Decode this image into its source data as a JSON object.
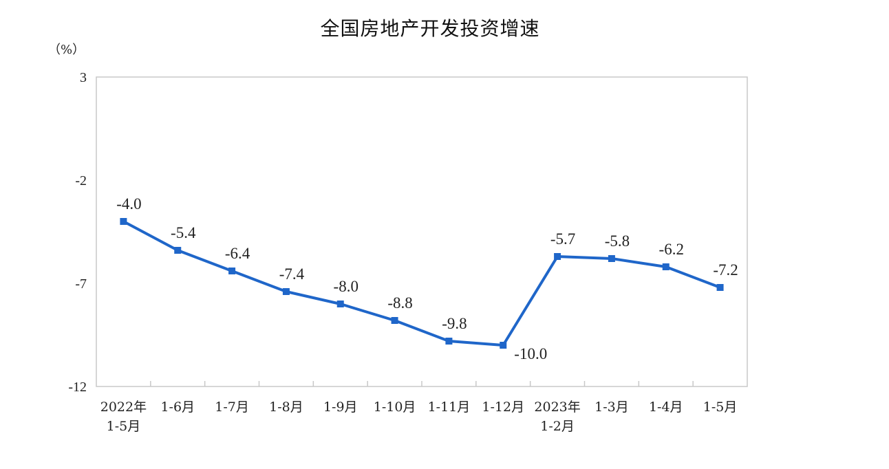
{
  "chart_data": {
    "type": "line",
    "title": "全国房地产开发投资增速",
    "unit": "（%）",
    "categories": [
      [
        "2022年",
        "1-5月"
      ],
      [
        "1-6月"
      ],
      [
        "1-7月"
      ],
      [
        "1-8月"
      ],
      [
        "1-9月"
      ],
      [
        "1-10月"
      ],
      [
        "1-11月"
      ],
      [
        "1-12月"
      ],
      [
        "2023年",
        "1-2月"
      ],
      [
        "1-3月"
      ],
      [
        "1-4月"
      ],
      [
        "1-5月"
      ]
    ],
    "series": [
      {
        "values": [
          -4.0,
          -5.4,
          -6.4,
          -7.4,
          -8.0,
          -8.8,
          -9.8,
          -10.0,
          -5.7,
          -5.8,
          -6.2,
          -7.2
        ],
        "labels": [
          "-4.0",
          "-5.4",
          "-6.4",
          "-7.4",
          "-8.0",
          "-8.8",
          "-9.8",
          "-10.0",
          "-5.7",
          "-5.8",
          "-6.2",
          "-7.2"
        ],
        "color": "#1f66c9"
      }
    ],
    "ylim": [
      -12,
      3
    ],
    "yticks": [
      "3",
      "-2",
      "-7",
      "-12"
    ],
    "ytick_values": [
      3,
      -2,
      -7,
      -12
    ],
    "grid": false,
    "legend": "none"
  }
}
